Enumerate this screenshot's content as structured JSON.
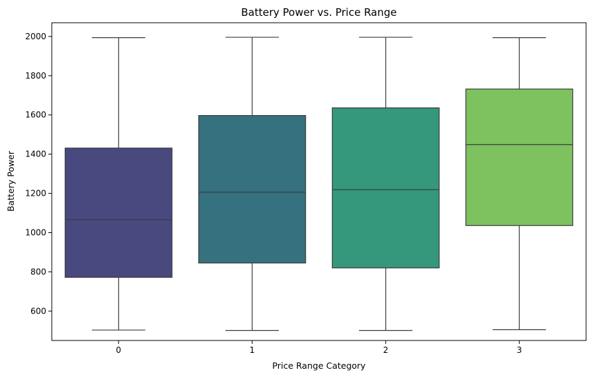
{
  "chart_data": {
    "type": "box",
    "title": "Battery Power vs. Price Range",
    "xlabel": "Price Range Category",
    "ylabel": "Battery Power",
    "categories": [
      "0",
      "1",
      "2",
      "3"
    ],
    "ylim": [
      450,
      2070
    ],
    "yticks": [
      600,
      800,
      1000,
      1200,
      1400,
      1600,
      1800,
      2000
    ],
    "grid": false,
    "series": [
      {
        "category": "0",
        "whisker_low": 503,
        "q1": 772,
        "median": 1066,
        "q3": 1431,
        "whisker_high": 1994,
        "color": "#48497f"
      },
      {
        "category": "1",
        "whisker_low": 501,
        "q1": 845,
        "median": 1206,
        "q3": 1597,
        "whisker_high": 1996,
        "color": "#35717f"
      },
      {
        "category": "2",
        "whisker_low": 501,
        "q1": 820,
        "median": 1219,
        "q3": 1636,
        "whisker_high": 1996,
        "color": "#35977b"
      },
      {
        "category": "3",
        "whisker_low": 505,
        "q1": 1036,
        "median": 1449,
        "q3": 1732,
        "whisker_high": 1994,
        "color": "#7dc25f"
      }
    ]
  }
}
